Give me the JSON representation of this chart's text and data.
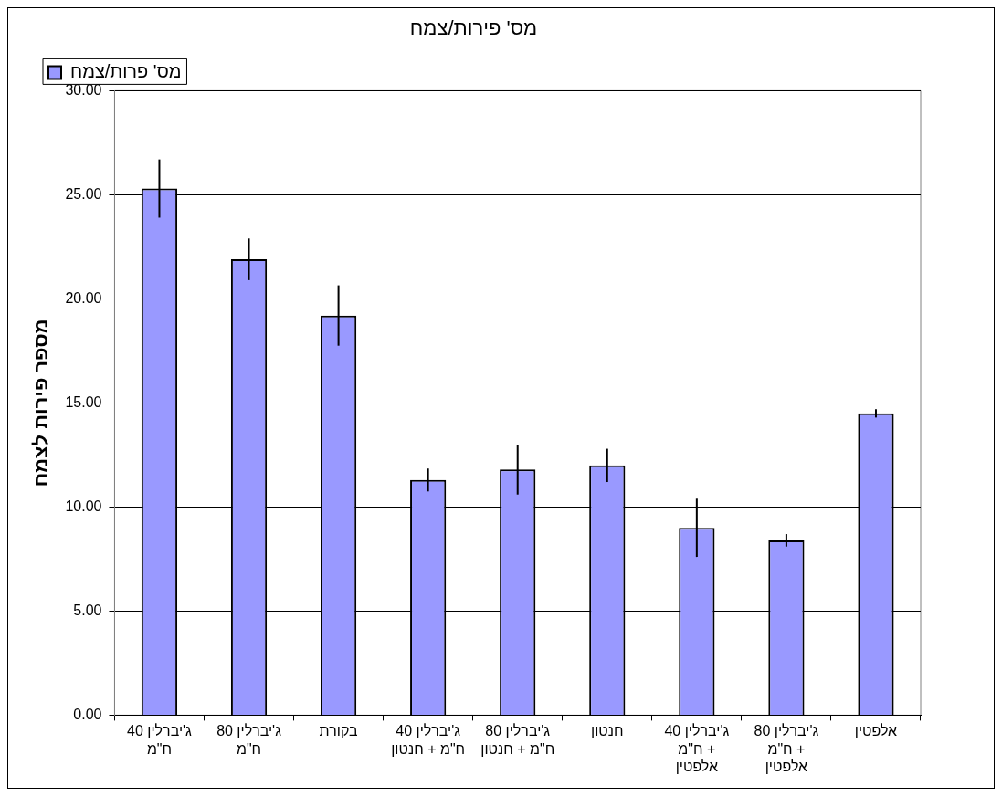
{
  "chart_data": {
    "type": "bar",
    "title": "מס' פירות/צמח",
    "ylabel": "מספר פירות לצמח",
    "categories": [
      "ג'יברלין 40\nח\"מ",
      "ג'יברלין 80\nח\"מ",
      "בקורת",
      "ג'יברלין 40\nח\"מ + חנטון",
      "ג'יברלין 80\nח\"מ + חנטון",
      "חנטון",
      "ג'יברלין 40\nח\"מ +\nאלפטין",
      "ג'יברלין 80\nח\"מ +\nאלפטין",
      "אלפטין"
    ],
    "series": [
      {
        "name": "מס' פרות/צמח",
        "color": "#9999ff",
        "values": [
          25.3,
          21.9,
          19.2,
          11.3,
          11.8,
          12.0,
          9.0,
          8.4,
          14.5
        ],
        "errors": [
          1.4,
          1.0,
          1.45,
          0.55,
          1.2,
          0.8,
          1.4,
          0.3,
          0.2
        ]
      }
    ],
    "ylim": [
      0,
      30
    ],
    "yticks": [
      {
        "value": 0,
        "label": "0.00"
      },
      {
        "value": 5,
        "label": "5.00"
      },
      {
        "value": 10,
        "label": "10.00"
      },
      {
        "value": 15,
        "label": "15.00"
      },
      {
        "value": 20,
        "label": "20.00"
      },
      {
        "value": 25,
        "label": "25.00"
      },
      {
        "value": 30,
        "label": "30.00"
      }
    ],
    "grid": "y",
    "legend": "top left"
  }
}
